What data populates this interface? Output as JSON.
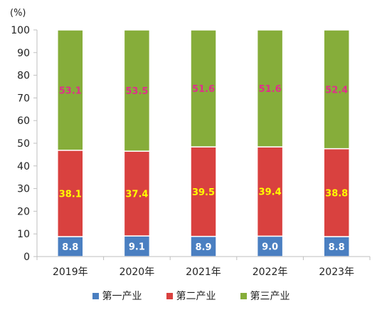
{
  "chart_data": {
    "type": "bar",
    "stacked": true,
    "unit_label": "(%)",
    "categories": [
      "2019年",
      "2020年",
      "2021年",
      "2022年",
      "2023年"
    ],
    "ylim": [
      0,
      100
    ],
    "yticks": [
      0,
      10,
      20,
      30,
      40,
      50,
      60,
      70,
      80,
      90,
      100
    ],
    "grid": false,
    "legend_position": "bottom",
    "series": [
      {
        "name": "第一产业",
        "color": "#4a7fc1",
        "label_color": "#ffffff",
        "values": [
          8.8,
          9.1,
          8.9,
          9.0,
          8.8
        ]
      },
      {
        "name": "第二产业",
        "color": "#d9413f",
        "label_color": "#ffff00",
        "values": [
          38.1,
          37.4,
          39.5,
          39.4,
          38.8
        ]
      },
      {
        "name": "第三产业",
        "color": "#86ad3a",
        "label_color": "#e0308a",
        "values": [
          53.1,
          53.5,
          51.6,
          51.6,
          52.4
        ]
      }
    ]
  }
}
